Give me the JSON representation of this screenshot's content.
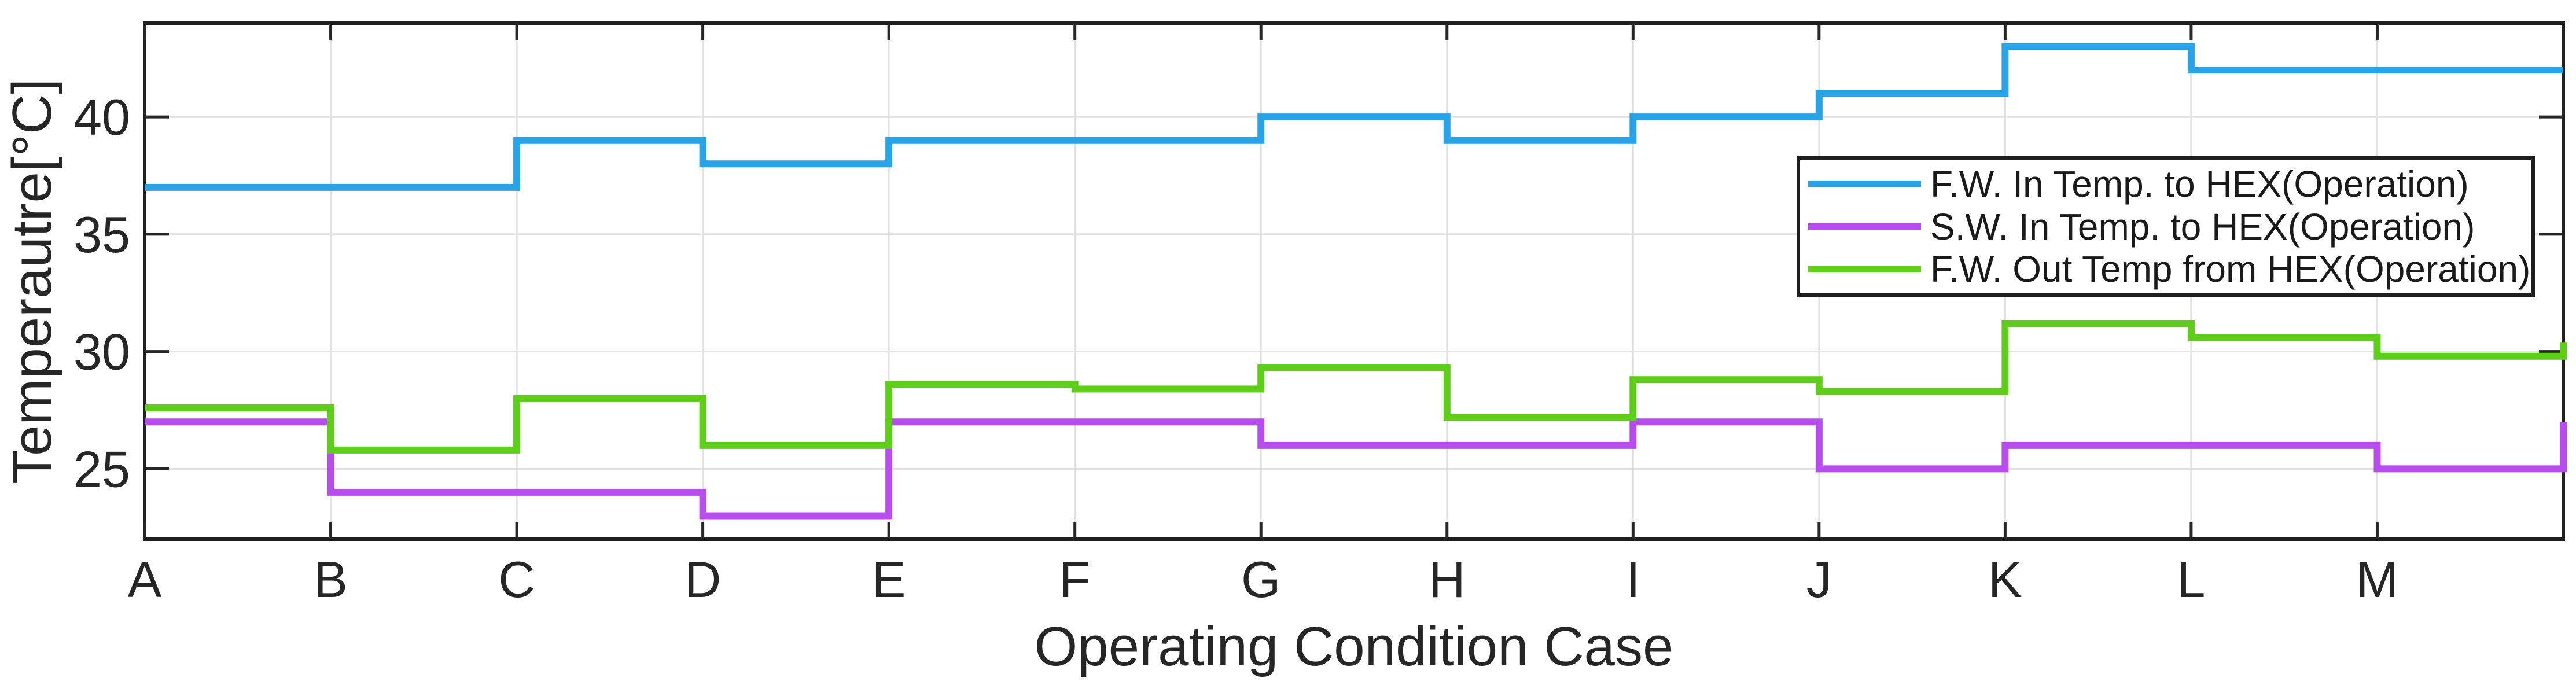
{
  "chart_data": {
    "type": "line",
    "subtype": "stairs-step",
    "title": "",
    "xlabel": "Operating Condition Case",
    "ylabel": "Temperautre[°C]",
    "categories": [
      "A",
      "B",
      "C",
      "D",
      "E",
      "F",
      "G",
      "H",
      "I",
      "J",
      "K",
      "L",
      "M"
    ],
    "ylim": [
      22,
      44
    ],
    "yticks": [
      25,
      30,
      35,
      40
    ],
    "grid": true,
    "legend_position": "upper-right-inside",
    "series": [
      {
        "name": "F.W. In Temp. to HEX(Operation)",
        "color": "#29A3E8",
        "values": [
          37,
          37,
          39,
          38,
          39,
          39,
          40,
          39,
          40,
          41,
          43,
          42,
          42
        ],
        "end_value": 42
      },
      {
        "name": "S.W. In Temp. to HEX(Operation)",
        "color": "#B84DED",
        "values": [
          27,
          24,
          24,
          23,
          27,
          27,
          26,
          26,
          27,
          25,
          26,
          26,
          25
        ],
        "end_value": 27
      },
      {
        "name": "F.W. Out Temp from HEX(Operation)",
        "color": "#5FCE1B",
        "values": [
          27.6,
          25.8,
          28,
          26,
          28.6,
          28.4,
          29.3,
          27.2,
          28.8,
          28.3,
          31.2,
          30.6,
          29.8
        ],
        "end_value": 30.4
      }
    ],
    "colors": {
      "axis": "#262626",
      "spine": "#1f1f1f",
      "grid": "#E2E2E2",
      "background": "#ffffff"
    }
  }
}
